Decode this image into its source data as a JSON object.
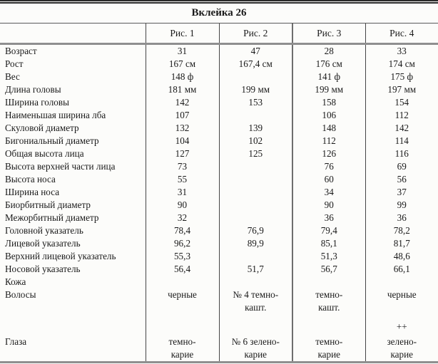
{
  "title": "Вклейка 26",
  "columns": [
    "",
    "Рис. 1",
    "Рис. 2",
    "Рис. 3",
    "Рис. 4"
  ],
  "rows": [
    {
      "label": "Возраст",
      "values": [
        "31",
        "47",
        "28",
        "33"
      ]
    },
    {
      "label": "Рост",
      "values": [
        "167 см",
        "167,4 см",
        "176 см",
        "174 см"
      ]
    },
    {
      "label": "Вес",
      "values": [
        "148 ф",
        "",
        "141 ф",
        "175 ф"
      ]
    },
    {
      "label": "Длина головы",
      "values": [
        "181 мм",
        "199 мм",
        "199 мм",
        "197 мм"
      ]
    },
    {
      "label": "Ширина головы",
      "values": [
        "142",
        "153",
        "158",
        "154"
      ]
    },
    {
      "label": "Наименьшая ширина лба",
      "values": [
        "107",
        "",
        "106",
        "112"
      ]
    },
    {
      "label": "Скуловой диаметр",
      "values": [
        "132",
        "139",
        "148",
        "142"
      ]
    },
    {
      "label": "Бигониальный диаметр",
      "values": [
        "104",
        "102",
        "112",
        "114"
      ]
    },
    {
      "label": "Общая высота лица",
      "values": [
        "127",
        "125",
        "126",
        "116"
      ]
    },
    {
      "label": "Высота верхней части лица",
      "values": [
        "73",
        "",
        "76",
        "69"
      ]
    },
    {
      "label": "Высота носа",
      "values": [
        "55",
        "",
        "60",
        "56"
      ]
    },
    {
      "label": "Ширина носа",
      "values": [
        "31",
        "",
        "34",
        "37"
      ]
    },
    {
      "label": "Биорбитный диаметр",
      "values": [
        "90",
        "",
        "90",
        "99"
      ]
    },
    {
      "label": "Межорбитный диаметр",
      "values": [
        "32",
        "",
        "36",
        "36"
      ]
    },
    {
      "label": "Головной указатель",
      "values": [
        "78,4",
        "76,9",
        "79,4",
        "78,2"
      ]
    },
    {
      "label": "Лицевой указатель",
      "values": [
        "96,2",
        "89,9",
        "85,1",
        "81,7"
      ]
    },
    {
      "label": "Верхний лицевой указатель",
      "values": [
        "55,3",
        "",
        "51,3",
        "48,6"
      ]
    },
    {
      "label": "Носовой указатель",
      "values": [
        "56,4",
        "51,7",
        "56,7",
        "66,1"
      ]
    },
    {
      "label": "Кожа",
      "values": [
        "",
        "",
        "",
        ""
      ]
    },
    {
      "label": "Волосы",
      "values": [
        "черные",
        "№ 4 темно-\nкашт.",
        "темно-\nкашт.",
        "черные"
      ]
    },
    {
      "label": "",
      "values": [
        "",
        "",
        "",
        "++"
      ]
    },
    {
      "label": "Глаза",
      "values": [
        "темно-\nкарие",
        "№ 6 зелено-\nкарие",
        "темно-\nкарие",
        "зелено-\nкарие"
      ]
    }
  ]
}
